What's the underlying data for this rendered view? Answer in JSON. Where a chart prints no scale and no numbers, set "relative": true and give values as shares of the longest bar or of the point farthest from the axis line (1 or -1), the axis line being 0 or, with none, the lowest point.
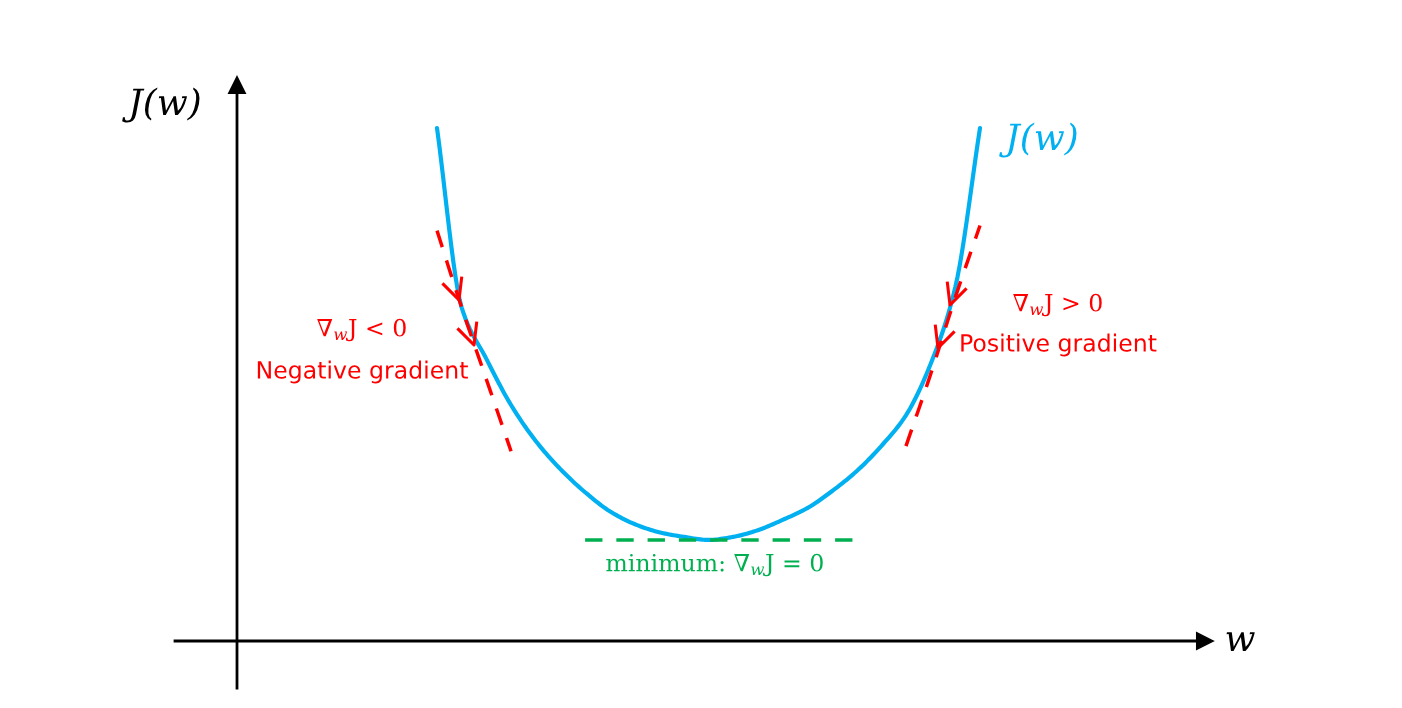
{
  "chart_data": {
    "type": "line",
    "relative": true,
    "categories": [
      null,
      null,
      null,
      null,
      null,
      null,
      null,
      null,
      null,
      null,
      null,
      null,
      null,
      null,
      null,
      null,
      null,
      null,
      null,
      null,
      null,
      null,
      null
    ],
    "series": [
      {
        "name": "J(w)",
        "color": "#00b0f0",
        "line_style": "solid",
        "values": [
          1.0,
          0.65,
          0.55,
          0.46,
          0.39,
          0.335,
          0.29,
          0.253,
          0.228,
          0.212,
          0.203,
          0.197,
          0.203,
          0.216,
          0.236,
          0.259,
          0.292,
          0.331,
          0.38,
          0.44,
          0.54,
          0.69,
          1.0
        ]
      },
      {
        "color": "#ff0000",
        "line_style": "dashed",
        "values": [
          0.8,
          0.65,
          0.51,
          0.37,
          null,
          null,
          null,
          null,
          null,
          null,
          null,
          null,
          null,
          null,
          null,
          null,
          null,
          null,
          null,
          null,
          null,
          null,
          null
        ]
      },
      {
        "color": "#ff0000",
        "line_style": "dashed",
        "values": [
          null,
          null,
          null,
          null,
          null,
          null,
          null,
          null,
          null,
          null,
          null,
          null,
          null,
          null,
          null,
          null,
          null,
          null,
          null,
          0.38,
          0.52,
          0.67,
          0.81
        ]
      },
      {
        "color": "#00b050",
        "line_style": "dashed",
        "values": [
          null,
          null,
          null,
          null,
          null,
          null,
          0.197,
          0.197,
          0.197,
          0.197,
          0.197,
          0.197,
          0.197,
          0.197,
          0.197,
          0.197,
          0.197,
          0.197,
          null,
          null,
          null,
          null,
          null
        ]
      }
    ],
    "annotations": [
      "∇$_{w}$J < 0",
      "Negative gradient",
      "∇$_{w}$J > 0",
      "Positive gradient",
      "minimum: ∇$_{w}$J = 0",
      "J(w)",
      "w"
    ]
  }
}
